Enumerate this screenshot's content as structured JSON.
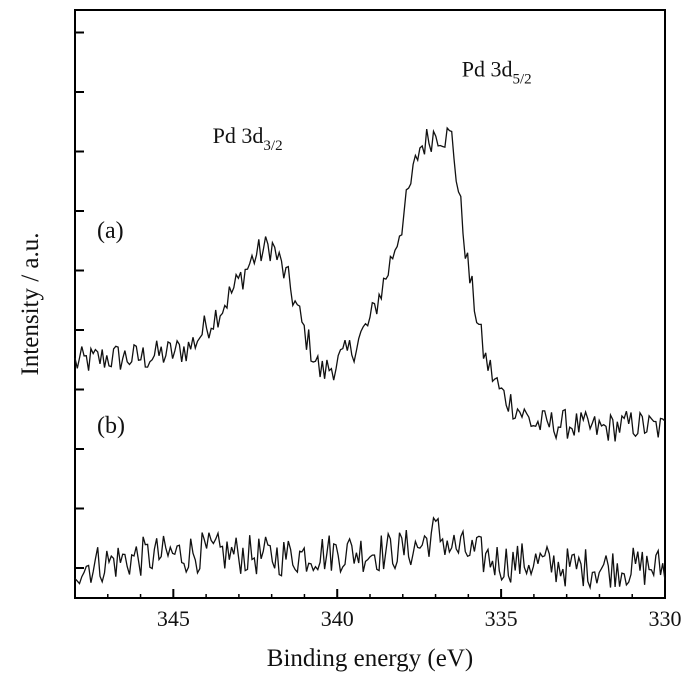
{
  "chart_data": {
    "type": "line",
    "title": "",
    "xlabel": "Binding energy (eV)",
    "ylabel": "Intensity / a.u.",
    "xlim": [
      348,
      330
    ],
    "x_reversed": true,
    "x_ticks": [
      345,
      340,
      335,
      330
    ],
    "y_ticks_labeled": false,
    "y_tick_count": 10,
    "grid": false,
    "legend": "none",
    "units": "a.u.",
    "series": [
      {
        "name": "(a)",
        "x": [
          348,
          347,
          346,
          345,
          344.5,
          344,
          343.5,
          343,
          342.5,
          342,
          341.5,
          341,
          340.5,
          340,
          339.5,
          339,
          338.5,
          338,
          337.5,
          337,
          336.5,
          336,
          335.5,
          335,
          334.5,
          334,
          333,
          332,
          331,
          330
        ],
        "y": [
          4.6,
          4.7,
          4.7,
          4.8,
          4.9,
          5.3,
          5.7,
          6.2,
          6.7,
          6.9,
          6.2,
          5.2,
          4.4,
          4.6,
          4.9,
          5.4,
          6.3,
          7.4,
          8.8,
          9.1,
          9.0,
          6.4,
          4.7,
          4.0,
          3.7,
          3.4,
          3.4,
          3.3,
          3.4,
          3.3
        ],
        "noise": 0.3
      },
      {
        "name": "(b)",
        "x": [
          348,
          346,
          344,
          342,
          340,
          338.5,
          337.5,
          337,
          336.5,
          336,
          335,
          334,
          333,
          332,
          331,
          330
        ],
        "y": [
          0.6,
          0.8,
          0.9,
          0.8,
          0.9,
          0.9,
          1.0,
          1.3,
          1.0,
          0.9,
          0.7,
          0.7,
          0.6,
          0.6,
          0.6,
          0.6
        ],
        "noise": 0.4
      }
    ],
    "annotations": [
      {
        "main": "Pd 3d",
        "sub": "3/2",
        "x": 343.8,
        "y": 8.9
      },
      {
        "main": "Pd 3d",
        "sub": "5/2",
        "x": 336.2,
        "y": 10.2
      }
    ]
  }
}
